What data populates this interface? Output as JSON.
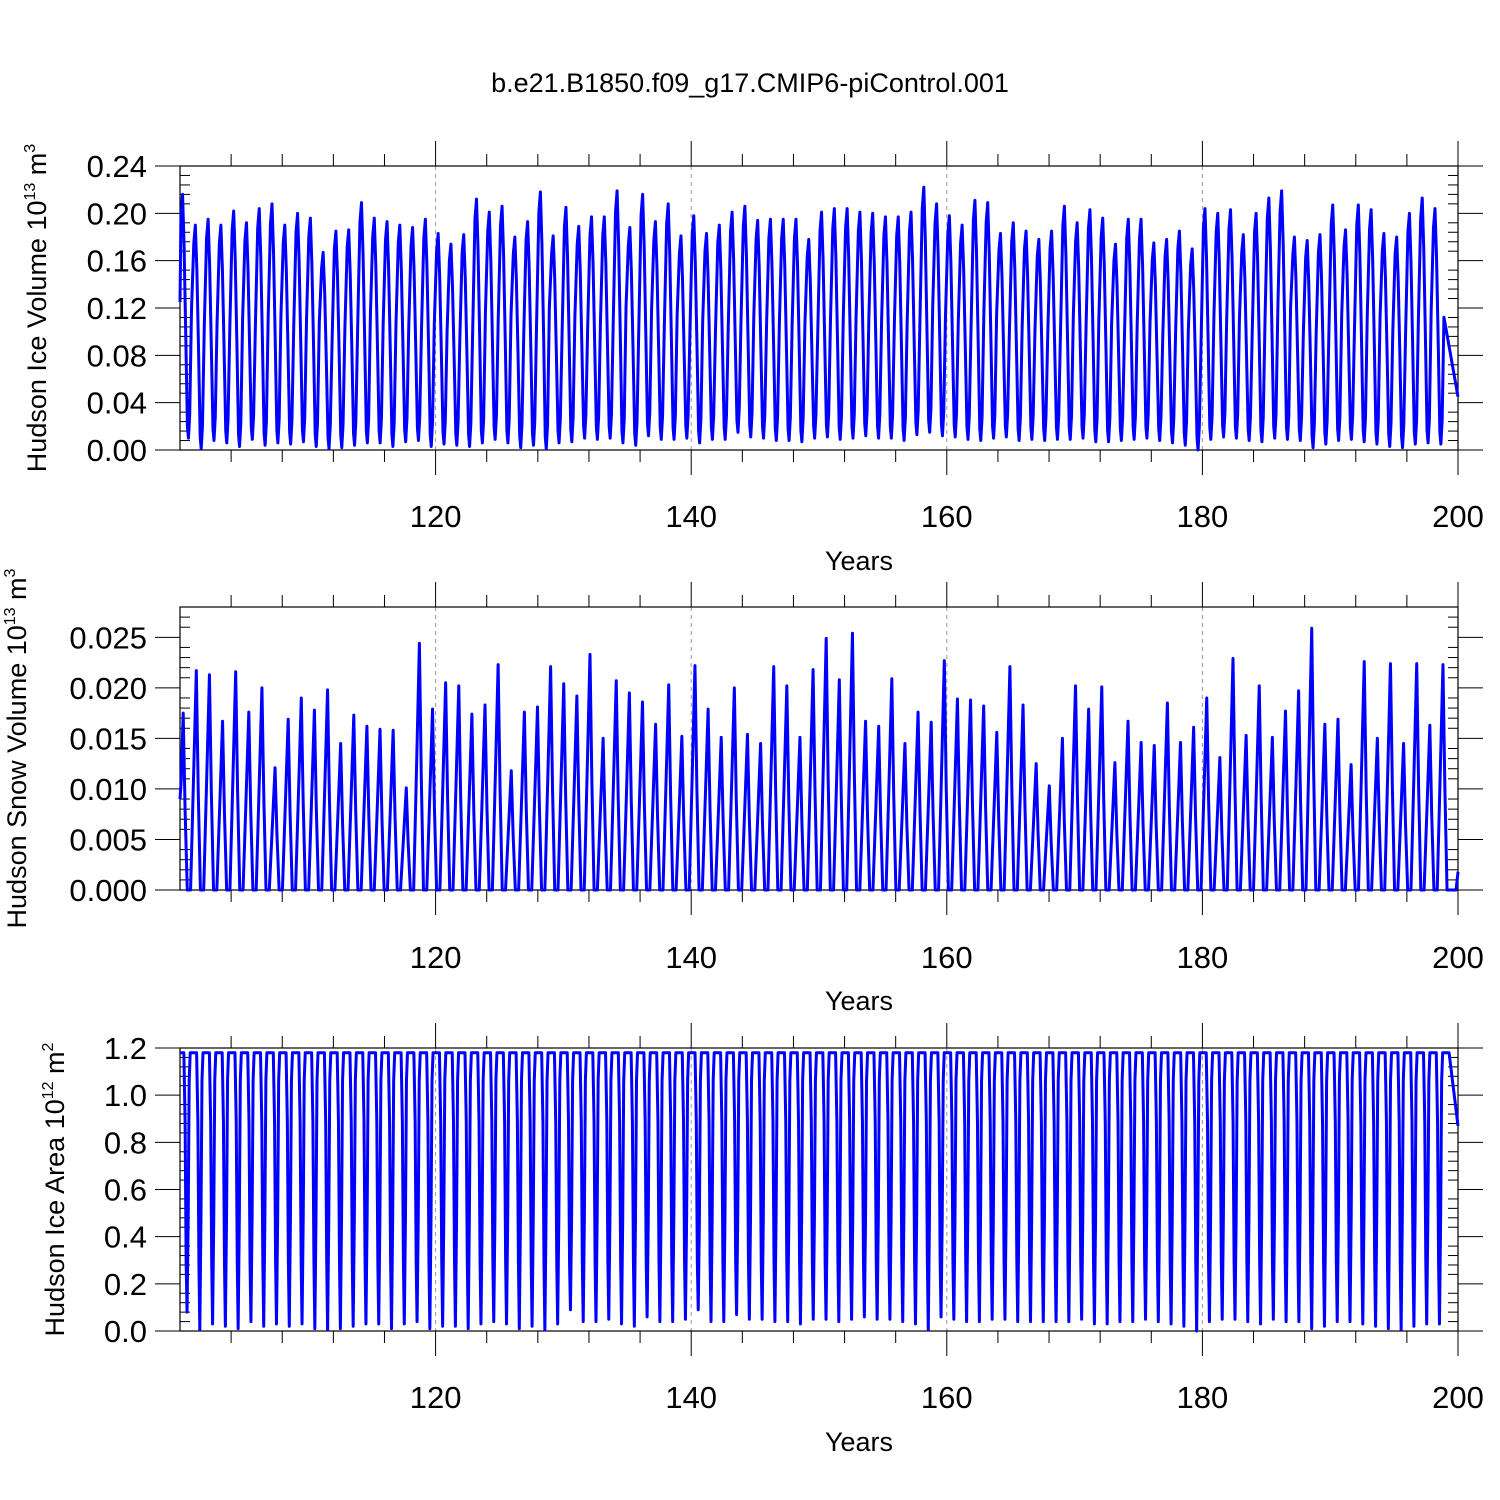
{
  "figure": {
    "title": "b.e21.B1850.f09_g17.CMIP6-piControl.001"
  },
  "colors": {
    "series": "#0000ff",
    "axis": "#000000",
    "grid": "#999999"
  },
  "chart_data": [
    {
      "type": "line",
      "title": "",
      "xlabel": "Years",
      "ylabel": {
        "prefix": "Hudson Ice Volume 10",
        "exp": "13",
        "unit": " m",
        "unit_exp": "3"
      },
      "xlim": [
        100,
        200
      ],
      "ylim": [
        0,
        0.24
      ],
      "xticks": [
        120,
        140,
        160,
        180,
        200
      ],
      "xtick_labels": [
        "120",
        "140",
        "160",
        "180",
        "200"
      ],
      "yticks": [
        0.0,
        0.04,
        0.08,
        0.12,
        0.16,
        0.2,
        0.24
      ],
      "ytick_labels": [
        "0.00",
        "0.04",
        "0.08",
        "0.12",
        "0.16",
        "0.20",
        "0.24"
      ],
      "grid": "dashed vertical at major x ticks",
      "series": [
        {
          "color": "#0000ff",
          "start": 0.125,
          "end": 0.045,
          "peaks": [
            0.216,
            0.19,
            0.195,
            0.19,
            0.202,
            0.192,
            0.204,
            0.208,
            0.19,
            0.2,
            0.196,
            0.167,
            0.185,
            0.186,
            0.209,
            0.196,
            0.193,
            0.19,
            0.188,
            0.195,
            0.183,
            0.174,
            0.182,
            0.212,
            0.201,
            0.206,
            0.18,
            0.193,
            0.218,
            0.181,
            0.205,
            0.189,
            0.197,
            0.197,
            0.219,
            0.188,
            0.216,
            0.193,
            0.208,
            0.181,
            0.198,
            0.183,
            0.19,
            0.201,
            0.206,
            0.194,
            0.195,
            0.195,
            0.195,
            0.178,
            0.201,
            0.204,
            0.204,
            0.201,
            0.2,
            0.197,
            0.197,
            0.201,
            0.222,
            0.208,
            0.198,
            0.19,
            0.211,
            0.209,
            0.183,
            0.192,
            0.185,
            0.178,
            0.185,
            0.206,
            0.192,
            0.203,
            0.196,
            0.174,
            0.195,
            0.195,
            0.175,
            0.178,
            0.185,
            0.17,
            0.204,
            0.2,
            0.203,
            0.182,
            0.2,
            0.213,
            0.219,
            0.18,
            0.177,
            0.182,
            0.207,
            0.186,
            0.207,
            0.203,
            0.183,
            0.18,
            0.2,
            0.213,
            0.204
          ],
          "troughs": [
            0.01,
            0.001,
            0.008,
            0.006,
            0.003,
            0.009,
            0.004,
            0.006,
            0.005,
            0.007,
            0.003,
            0.001,
            0.002,
            0.004,
            0.006,
            0.006,
            0.003,
            0.007,
            0.008,
            0.003,
            0.005,
            0.004,
            0.003,
            0.006,
            0.009,
            0.006,
            0.002,
            0.004,
            0.001,
            0.006,
            0.007,
            0.01,
            0.009,
            0.01,
            0.006,
            0.004,
            0.012,
            0.009,
            0.009,
            0.01,
            0.006,
            0.009,
            0.009,
            0.015,
            0.011,
            0.01,
            0.008,
            0.008,
            0.007,
            0.01,
            0.011,
            0.009,
            0.01,
            0.012,
            0.01,
            0.01,
            0.008,
            0.013,
            0.015,
            0.012,
            0.011,
            0.009,
            0.008,
            0.01,
            0.011,
            0.008,
            0.009,
            0.008,
            0.009,
            0.009,
            0.01,
            0.007,
            0.007,
            0.008,
            0.009,
            0.01,
            0.008,
            0.006,
            0.004,
            0.0,
            0.009,
            0.011,
            0.01,
            0.008,
            0.007,
            0.01,
            0.009,
            0.008,
            0.002,
            0.005,
            0.008,
            0.009,
            0.007,
            0.005,
            0.003,
            0.002,
            0.005,
            0.006,
            0.005
          ]
        }
      ]
    },
    {
      "type": "line",
      "title": "",
      "xlabel": "Years",
      "ylabel": {
        "prefix": "Hudson Snow Volume 10",
        "exp": "13",
        "unit": " m",
        "unit_exp": "3"
      },
      "xlim": [
        100,
        200
      ],
      "ylim": [
        0,
        0.028
      ],
      "xticks": [
        120,
        140,
        160,
        180,
        200
      ],
      "xtick_labels": [
        "120",
        "140",
        "160",
        "180",
        "200"
      ],
      "yticks": [
        0.0,
        0.005,
        0.01,
        0.015,
        0.02,
        0.025
      ],
      "ytick_labels": [
        "0.000",
        "0.005",
        "0.010",
        "0.015",
        "0.020",
        "0.025"
      ],
      "grid": "dashed vertical at major x ticks",
      "series": [
        {
          "color": "#0000ff",
          "start": 0.009,
          "end": 0.0018,
          "peaks": [
            0.0175,
            0.0217,
            0.0213,
            0.0167,
            0.0216,
            0.0176,
            0.02,
            0.0121,
            0.0169,
            0.019,
            0.0178,
            0.0198,
            0.0145,
            0.0173,
            0.0162,
            0.0159,
            0.0158,
            0.0101,
            0.0244,
            0.0179,
            0.0205,
            0.0202,
            0.0174,
            0.0183,
            0.0223,
            0.0118,
            0.0176,
            0.0181,
            0.0221,
            0.0204,
            0.0192,
            0.0233,
            0.015,
            0.0207,
            0.0195,
            0.0186,
            0.0164,
            0.0203,
            0.0152,
            0.0222,
            0.0179,
            0.0151,
            0.02,
            0.0154,
            0.0145,
            0.0221,
            0.0202,
            0.0151,
            0.0218,
            0.0249,
            0.0208,
            0.0254,
            0.0167,
            0.0162,
            0.0209,
            0.0145,
            0.0176,
            0.0166,
            0.0227,
            0.0189,
            0.0188,
            0.0182,
            0.0156,
            0.0221,
            0.0183,
            0.0125,
            0.0103,
            0.015,
            0.0202,
            0.0179,
            0.0201,
            0.0126,
            0.0167,
            0.0146,
            0.0143,
            0.0185,
            0.0146,
            0.0161,
            0.019,
            0.0131,
            0.0229,
            0.0153,
            0.0202,
            0.0151,
            0.0177,
            0.0197,
            0.0259,
            0.0164,
            0.0169,
            0.0124,
            0.0226,
            0.015,
            0.0224,
            0.0145,
            0.0224,
            0.0163,
            0.0223
          ],
          "troughs": null
        }
      ]
    },
    {
      "type": "line",
      "title": "",
      "xlabel": "Years",
      "ylabel": {
        "prefix": "Hudson Ice Area 10",
        "exp": "12",
        "unit": " m",
        "unit_exp": "2"
      },
      "xlim": [
        100,
        200
      ],
      "ylim": [
        0,
        1.2
      ],
      "xticks": [
        120,
        140,
        160,
        180,
        200
      ],
      "xtick_labels": [
        "120",
        "140",
        "160",
        "180",
        "200"
      ],
      "yticks": [
        0.0,
        0.2,
        0.4,
        0.6,
        0.8,
        1.0,
        1.2
      ],
      "ytick_labels": [
        "0.0",
        "0.2",
        "0.4",
        "0.6",
        "0.8",
        "1.0",
        "1.2"
      ],
      "grid": "dashed vertical at major x ticks",
      "series": [
        {
          "color": "#0000ff",
          "start": 1.18,
          "end": 0.87,
          "plateau": 1.18,
          "troughs": [
            0.08,
            0.005,
            0.03,
            0.02,
            0.01,
            0.04,
            0.02,
            0.03,
            0.02,
            0.03,
            0.01,
            0.005,
            0.01,
            0.02,
            0.03,
            0.03,
            0.01,
            0.03,
            0.04,
            0.01,
            0.02,
            0.02,
            0.01,
            0.03,
            0.04,
            0.03,
            0.01,
            0.02,
            0.005,
            0.03,
            0.09,
            0.04,
            0.04,
            0.05,
            0.03,
            0.02,
            0.06,
            0.04,
            0.04,
            0.05,
            0.09,
            0.04,
            0.04,
            0.07,
            0.05,
            0.05,
            0.04,
            0.04,
            0.03,
            0.05,
            0.05,
            0.04,
            0.05,
            0.06,
            0.05,
            0.05,
            0.04,
            0.03,
            0.005,
            0.06,
            0.05,
            0.04,
            0.04,
            0.05,
            0.05,
            0.04,
            0.04,
            0.04,
            0.04,
            0.04,
            0.05,
            0.03,
            0.03,
            0.04,
            0.04,
            0.05,
            0.04,
            0.03,
            0.02,
            0.0,
            0.04,
            0.05,
            0.05,
            0.04,
            0.03,
            0.05,
            0.04,
            0.04,
            0.01,
            0.02,
            0.04,
            0.04,
            0.03,
            0.02,
            0.01,
            0.005,
            0.02,
            0.03,
            0.03
          ]
        }
      ]
    }
  ]
}
